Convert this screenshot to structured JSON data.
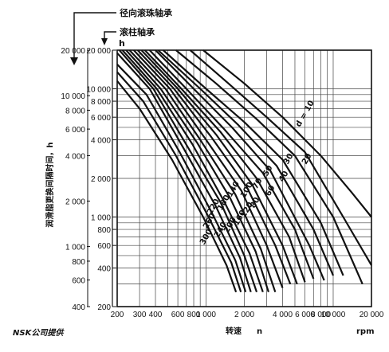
{
  "chart_data": {
    "type": "line",
    "title": "",
    "xlabel": "转速",
    "x_symbol": "n",
    "x_unit": "rpm",
    "ylabel": "润滑脂更换间隔时间，h",
    "y_unit": "h",
    "x_scale": "log",
    "y_scale": "log",
    "xlim": [
      200,
      20000
    ],
    "ylim_ball": [
      400,
      20000
    ],
    "ylim_roller": [
      200,
      20000
    ],
    "grid": true,
    "axis_headers": {
      "ball": "径向滚珠轴承",
      "roller": "滚柱轴承"
    },
    "x_ticks": [
      {
        "v": 200,
        "t": "200"
      },
      {
        "v": 300,
        "t": "300"
      },
      {
        "v": 400,
        "t": "400"
      },
      {
        "v": 600,
        "t": "600"
      },
      {
        "v": 800,
        "t": "800"
      },
      {
        "v": 1000,
        "t": "1 000"
      },
      {
        "v": 2000,
        "t": "2 000"
      },
      {
        "v": 4000,
        "t": "4 000"
      },
      {
        "v": 6000,
        "t": "6 000"
      },
      {
        "v": 8000,
        "t": "8 000"
      },
      {
        "v": 10000,
        "t": "10 000"
      },
      {
        "v": 20000,
        "t": "20 000"
      }
    ],
    "y_ticks_ball": [
      {
        "v": 400,
        "t": "400"
      },
      {
        "v": 600,
        "t": "600"
      },
      {
        "v": 800,
        "t": "800"
      },
      {
        "v": 1000,
        "t": "1 000"
      },
      {
        "v": 2000,
        "t": "2 000"
      },
      {
        "v": 4000,
        "t": "4 000"
      },
      {
        "v": 6000,
        "t": "6 000"
      },
      {
        "v": 8000,
        "t": "8 000"
      },
      {
        "v": 10000,
        "t": "10 000"
      },
      {
        "v": 20000,
        "t": "20 000"
      }
    ],
    "y_ticks_roller": [
      {
        "v": 200,
        "t": "200"
      },
      {
        "v": 400,
        "t": "400"
      },
      {
        "v": 600,
        "t": "600"
      },
      {
        "v": 800,
        "t": "800"
      },
      {
        "v": 1000,
        "t": "1 000"
      },
      {
        "v": 2000,
        "t": "2 000"
      },
      {
        "v": 4000,
        "t": "4 000"
      },
      {
        "v": 6000,
        "t": "6 000"
      },
      {
        "v": 8000,
        "t": "8 000"
      },
      {
        "v": 10000,
        "t": "10 000"
      },
      {
        "v": 20000,
        "t": "20 000"
      }
    ],
    "series": [
      {
        "name": "d = 10",
        "x": [
          950,
          2000,
          4000,
          8000,
          14000,
          20000
        ],
        "y_roller": [
          20000,
          11000,
          6000,
          3000,
          1550,
          1000
        ]
      },
      {
        "name": "20",
        "x": [
          750,
          1500,
          3000,
          6000,
          12000,
          20000
        ],
        "y_roller": [
          20000,
          11000,
          6000,
          3200,
          1000,
          420
        ]
      },
      {
        "name": "30",
        "x": [
          580,
          1200,
          2500,
          5000,
          10000,
          17000
        ],
        "y_roller": [
          20000,
          11000,
          5800,
          3000,
          1000,
          300
        ]
      },
      {
        "name": "40",
        "x": [
          460,
          1000,
          2000,
          4000,
          8000,
          12000
        ],
        "y_roller": [
          20000,
          10000,
          5500,
          2800,
          900,
          350
        ]
      },
      {
        "name": "50",
        "x": [
          420,
          900,
          1800,
          3600,
          7000,
          10000
        ],
        "y_roller": [
          20000,
          10000,
          5200,
          2500,
          800,
          350
        ]
      },
      {
        "name": "60",
        "x": [
          400,
          800,
          1600,
          3200,
          6500,
          8500
        ],
        "y_roller": [
          20000,
          10000,
          5000,
          2300,
          600,
          320
        ]
      },
      {
        "name": "70",
        "x": [
          360,
          700,
          1400,
          2800,
          5000,
          7000
        ],
        "y_roller": [
          20000,
          10000,
          4800,
          2200,
          800,
          330
        ]
      },
      {
        "name": "80",
        "x": [
          330,
          640,
          1300,
          2500,
          4500,
          6000
        ],
        "y_roller": [
          20000,
          10000,
          4600,
          2000,
          700,
          310
        ]
      },
      {
        "name": "100",
        "x": [
          310,
          600,
          1200,
          2300,
          4000,
          5200
        ],
        "y_roller": [
          20000,
          10000,
          4400,
          1800,
          600,
          300
        ]
      },
      {
        "name": "120",
        "x": [
          290,
          560,
          1100,
          2100,
          3500,
          4600
        ],
        "y_roller": [
          20000,
          10000,
          4200,
          1700,
          600,
          300
        ]
      },
      {
        "name": "140",
        "x": [
          270,
          520,
          1000,
          1900,
          3000,
          4000
        ],
        "y_roller": [
          20000,
          10000,
          4000,
          1600,
          600,
          280
        ]
      },
      {
        "name": "160",
        "x": [
          250,
          480,
          900,
          1700,
          2700,
          3500
        ],
        "y_roller": [
          20000,
          10000,
          4000,
          1500,
          560,
          260
        ]
      },
      {
        "name": "180",
        "x": [
          235,
          440,
          850,
          1550,
          2450,
          3100
        ],
        "y_roller": [
          20000,
          10000,
          3800,
          1400,
          540,
          260
        ]
      },
      {
        "name": "200",
        "x": [
          220,
          410,
          780,
          1400,
          2200,
          2800
        ],
        "y_roller": [
          20000,
          10000,
          3700,
          1300,
          520,
          260
        ]
      },
      {
        "name": "220",
        "x": [
          208,
          385,
          720,
          1300,
          2000,
          2500
        ],
        "y_roller": [
          20000,
          10000,
          3500,
          1300,
          500,
          260
        ]
      },
      {
        "name": "240",
        "x": [
          200,
          360,
          670,
          1200,
          1850,
          2250
        ],
        "y_roller": [
          19000,
          10000,
          3400,
          1200,
          480,
          260
        ]
      },
      {
        "name": "260",
        "x": [
          200,
          340,
          620,
          1100,
          1700,
          2050
        ],
        "y_roller": [
          15500,
          9000,
          3200,
          1100,
          460,
          260
        ]
      },
      {
        "name": "280",
        "x": [
          200,
          320,
          580,
          1020,
          1580,
          1880
        ],
        "y_roller": [
          13500,
          8000,
          3000,
          1050,
          440,
          260
        ]
      },
      {
        "name": "300",
        "x": [
          200,
          300,
          540,
          950,
          1450,
          1720
        ],
        "y_roller": [
          11500,
          7000,
          2800,
          1000,
          420,
          260
        ]
      }
    ],
    "annotations": [
      {
        "text": "d = 10"
      },
      {
        "text": "20"
      },
      {
        "text": "30"
      },
      {
        "text": "40"
      },
      {
        "text": "50"
      },
      {
        "text": "60"
      },
      {
        "text": "70"
      },
      {
        "text": "80"
      },
      {
        "text": "100"
      },
      {
        "text": "120"
      },
      {
        "text": "140"
      },
      {
        "text": "160"
      },
      {
        "text": "180"
      },
      {
        "text": "200"
      },
      {
        "text": "220"
      },
      {
        "text": "240"
      },
      {
        "text": "260"
      },
      {
        "text": "300"
      }
    ]
  },
  "credit": "NSK公司提供"
}
